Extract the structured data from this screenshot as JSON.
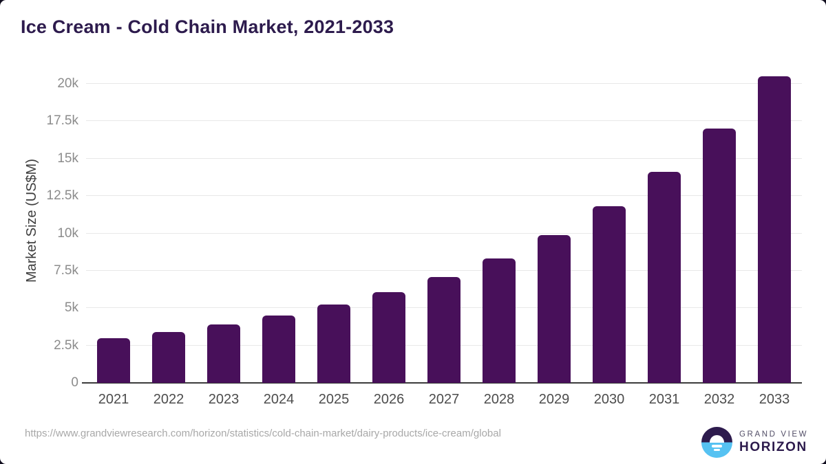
{
  "title": "Ice Cream - Cold Chain Market, 2021-2033",
  "chart_data": {
    "type": "bar",
    "title": "Ice Cream - Cold Chain Market, 2021-2033",
    "ylabel": "Market Size (US$M)",
    "xlabel": "",
    "categories": [
      "2021",
      "2022",
      "2023",
      "2024",
      "2025",
      "2026",
      "2027",
      "2028",
      "2029",
      "2030",
      "2031",
      "2032",
      "2033"
    ],
    "values": [
      3000,
      3400,
      3900,
      4500,
      5250,
      6050,
      7100,
      8300,
      9900,
      11800,
      14100,
      17000,
      20500
    ],
    "ylim": [
      0,
      20000
    ],
    "ytick_step": 2500,
    "ytick_labels": [
      "0",
      "2.5k",
      "5k",
      "7.5k",
      "10k",
      "12.5k",
      "15k",
      "17.5k",
      "20k"
    ],
    "grid": true,
    "legend": false,
    "bar_color": "#48105a"
  },
  "colors": {
    "title_text": "#2d1b4d",
    "bar": "#48105a",
    "axis_line": "#3b3b3b",
    "gridline": "#e8e8e8",
    "ytick_label": "#8b8b8b",
    "xtick_label": "#4c4c4c",
    "source_url_text": "#a8a8a8",
    "logo_blue": "#56c2f2",
    "logo_purple": "#2d1b4d"
  },
  "footer": {
    "source_url": "https://www.grandviewresearch.com/horizon/statistics/cold-chain-market/dairy-products/ice-cream/global",
    "logo": {
      "line1": "GRAND VIEW",
      "line2": "HORIZON"
    }
  }
}
